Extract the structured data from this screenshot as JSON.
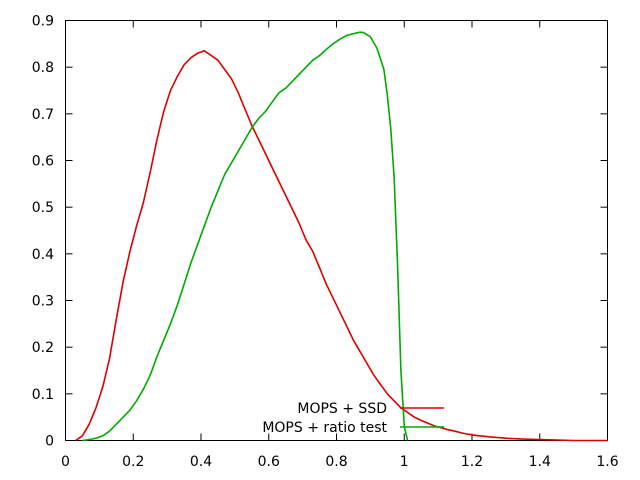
{
  "chart_data": {
    "type": "line",
    "title": "",
    "xlabel": "",
    "ylabel": "",
    "xlim": [
      0,
      1.6
    ],
    "ylim": [
      0,
      0.9
    ],
    "x_ticks": [
      0,
      0.2,
      0.4,
      0.6,
      0.8,
      1,
      1.2,
      1.4,
      1.6
    ],
    "x_tick_labels": [
      "0",
      "0.2",
      "0.4",
      "0.6",
      "0.8",
      "1",
      "1.2",
      "1.4",
      "1.6"
    ],
    "y_ticks": [
      0,
      0.1,
      0.2,
      0.3,
      0.4,
      0.5,
      0.6,
      0.7,
      0.8,
      0.9
    ],
    "y_tick_labels": [
      "0",
      "0.1",
      "0.2",
      "0.3",
      "0.4",
      "0.5",
      "0.6",
      "0.7",
      "0.8",
      "0.9"
    ],
    "grid": false,
    "legend_placement": "bottom-center",
    "series": [
      {
        "name": "MOPS + SSD",
        "color": "#dd0000",
        "x": [
          0.03,
          0.05,
          0.07,
          0.09,
          0.11,
          0.13,
          0.15,
          0.17,
          0.19,
          0.21,
          0.23,
          0.25,
          0.27,
          0.29,
          0.31,
          0.33,
          0.35,
          0.37,
          0.39,
          0.41,
          0.43,
          0.45,
          0.47,
          0.49,
          0.51,
          0.53,
          0.55,
          0.57,
          0.59,
          0.61,
          0.63,
          0.65,
          0.67,
          0.69,
          0.71,
          0.73,
          0.75,
          0.77,
          0.79,
          0.81,
          0.83,
          0.85,
          0.87,
          0.89,
          0.91,
          0.93,
          0.95,
          0.97,
          0.99,
          1.01,
          1.03,
          1.05,
          1.07,
          1.09,
          1.11,
          1.13,
          1.15,
          1.17,
          1.2,
          1.25,
          1.3,
          1.35,
          1.4,
          1.45,
          1.5,
          1.55,
          1.6
        ],
        "y": [
          0.0,
          0.01,
          0.035,
          0.07,
          0.115,
          0.175,
          0.26,
          0.34,
          0.405,
          0.46,
          0.51,
          0.575,
          0.645,
          0.705,
          0.75,
          0.78,
          0.805,
          0.82,
          0.83,
          0.835,
          0.825,
          0.815,
          0.795,
          0.775,
          0.745,
          0.71,
          0.675,
          0.645,
          0.615,
          0.585,
          0.555,
          0.525,
          0.495,
          0.465,
          0.43,
          0.405,
          0.37,
          0.335,
          0.305,
          0.275,
          0.245,
          0.215,
          0.19,
          0.165,
          0.14,
          0.12,
          0.1,
          0.085,
          0.07,
          0.06,
          0.05,
          0.043,
          0.037,
          0.031,
          0.027,
          0.023,
          0.02,
          0.016,
          0.012,
          0.008,
          0.005,
          0.003,
          0.002,
          0.001,
          0.0,
          0.0,
          0.0
        ]
      },
      {
        "name": "MOPS + ratio test",
        "color": "#00aa00",
        "x": [
          0.05,
          0.07,
          0.09,
          0.11,
          0.13,
          0.15,
          0.17,
          0.19,
          0.21,
          0.23,
          0.25,
          0.27,
          0.29,
          0.31,
          0.33,
          0.35,
          0.37,
          0.39,
          0.41,
          0.43,
          0.45,
          0.47,
          0.49,
          0.51,
          0.53,
          0.55,
          0.57,
          0.59,
          0.61,
          0.63,
          0.65,
          0.67,
          0.69,
          0.71,
          0.73,
          0.75,
          0.77,
          0.79,
          0.81,
          0.83,
          0.85,
          0.87,
          0.88,
          0.9,
          0.92,
          0.94,
          0.95,
          0.96,
          0.97,
          0.98,
          0.99,
          1.0,
          1.01
        ],
        "y": [
          0.0,
          0.002,
          0.005,
          0.01,
          0.02,
          0.035,
          0.05,
          0.065,
          0.085,
          0.11,
          0.14,
          0.18,
          0.215,
          0.25,
          0.29,
          0.335,
          0.38,
          0.42,
          0.46,
          0.5,
          0.535,
          0.57,
          0.595,
          0.62,
          0.645,
          0.67,
          0.69,
          0.705,
          0.725,
          0.745,
          0.755,
          0.77,
          0.785,
          0.8,
          0.815,
          0.825,
          0.838,
          0.85,
          0.86,
          0.868,
          0.872,
          0.875,
          0.874,
          0.865,
          0.84,
          0.795,
          0.74,
          0.67,
          0.565,
          0.38,
          0.15,
          0.03,
          0.0
        ]
      }
    ]
  }
}
